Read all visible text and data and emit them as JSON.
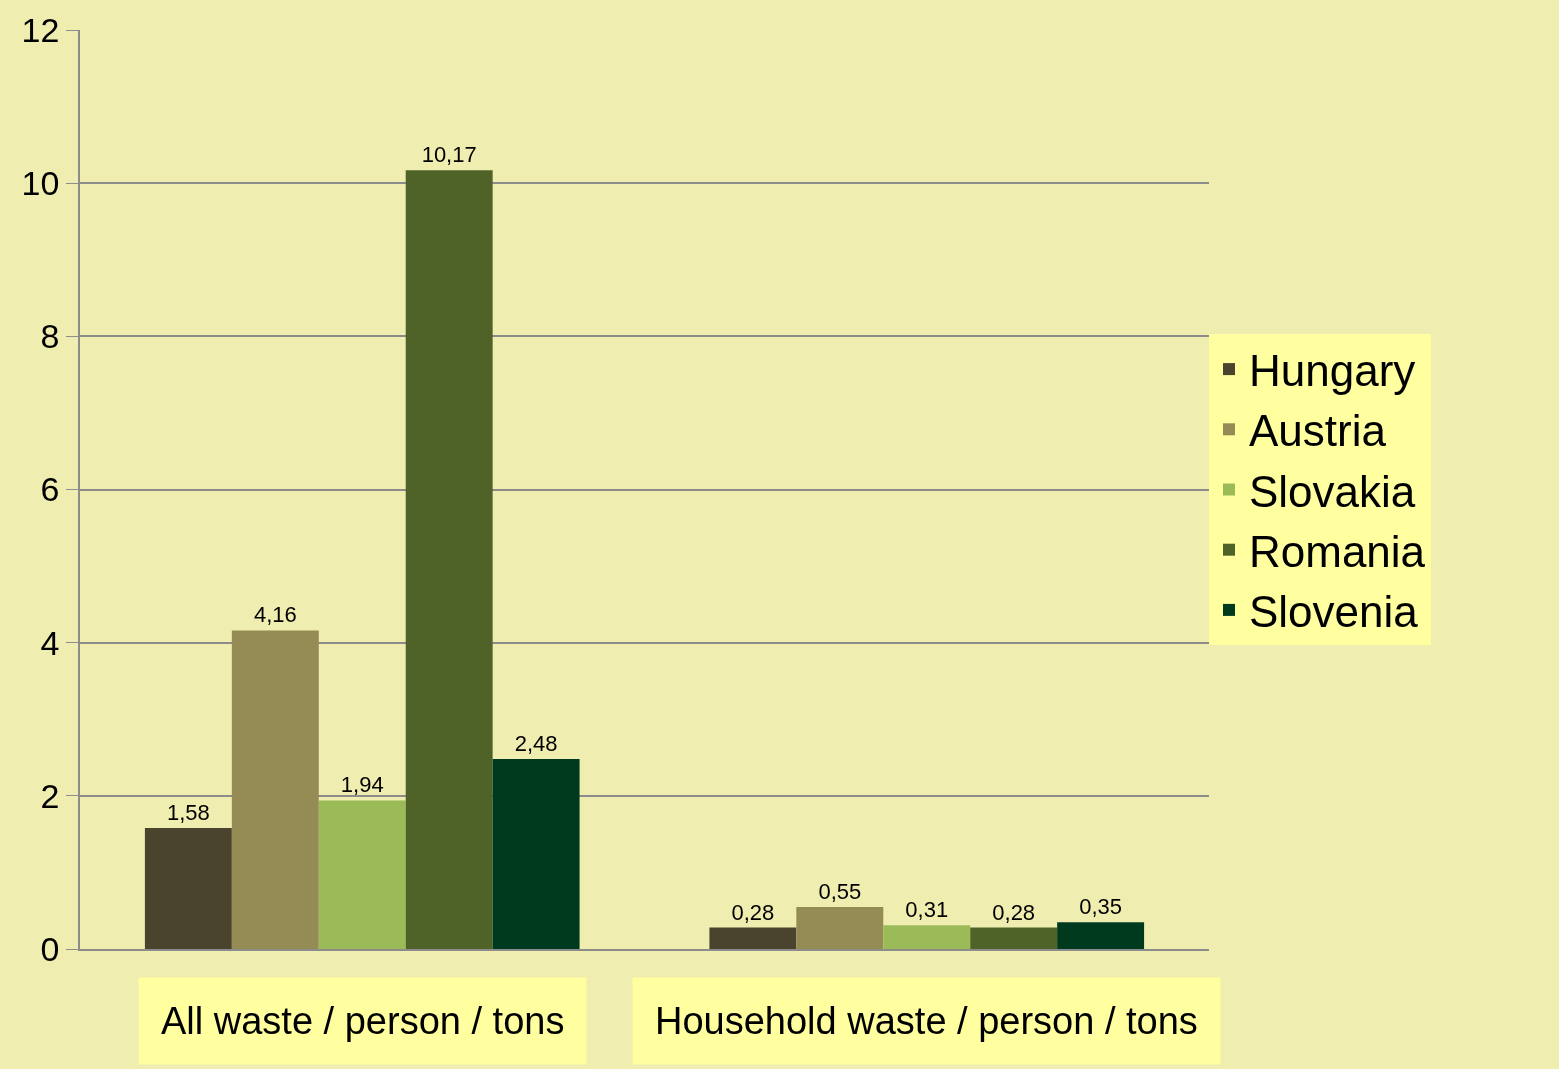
{
  "chart_data": {
    "type": "bar",
    "categories": [
      "All waste / person / tons",
      "Household waste / person / tons"
    ],
    "series": [
      {
        "name": "Hungary",
        "color": "#4a432e",
        "values": [
          1.58,
          0.28
        ],
        "value_labels": [
          "1,58",
          "0,28"
        ]
      },
      {
        "name": "Austria",
        "color": "#958b54",
        "values": [
          4.16,
          0.55
        ],
        "value_labels": [
          "4,16",
          "0,55"
        ]
      },
      {
        "name": "Slovakia",
        "color": "#9bbb59",
        "values": [
          1.94,
          0.31
        ],
        "value_labels": [
          "1,94",
          "0,31"
        ]
      },
      {
        "name": "Romania",
        "color": "#4f6228",
        "values": [
          10.17,
          0.28
        ],
        "value_labels": [
          "10,17",
          "0,28"
        ]
      },
      {
        "name": "Slovenia",
        "color": "#003a1e",
        "values": [
          2.48,
          0.35
        ],
        "value_labels": [
          "2,48",
          "0,35"
        ]
      }
    ],
    "ylim": [
      0,
      12
    ],
    "yticks": [
      0,
      2,
      4,
      6,
      8,
      10,
      12
    ],
    "grid": "y",
    "legend": "right"
  }
}
